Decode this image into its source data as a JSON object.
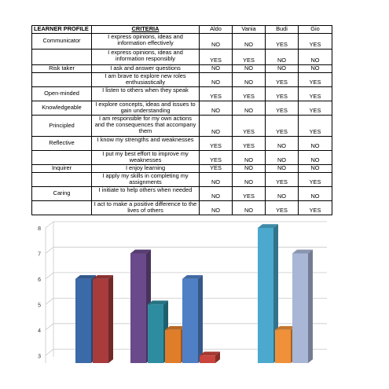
{
  "table": {
    "headers": [
      "LEARNER PROFILE",
      "CRITERIA",
      "Aldo",
      "Vania",
      "Budi",
      "Gio"
    ],
    "rows": [
      {
        "profile": "Communicator",
        "criteria": "I express opinions, ideas and information effectively",
        "values": [
          "NO",
          "NO",
          "YES",
          "YES"
        ]
      },
      {
        "profile": "",
        "criteria": "I express opinions, ideas and information responsibly",
        "values": [
          "YES",
          "YES",
          "NO",
          "NO"
        ]
      },
      {
        "profile": "Risk taker",
        "criteria": "I ask and answer questions",
        "values": [
          "NO",
          "NO",
          "NO",
          "NO"
        ]
      },
      {
        "profile": "",
        "criteria": "I am brave to explore new roles enthusiastically",
        "values": [
          "NO",
          "NO",
          "YES",
          "YES"
        ]
      },
      {
        "profile": "Open-minded",
        "criteria": "I listen to others when they speak",
        "values": [
          "YES",
          "YES",
          "YES",
          "YES"
        ]
      },
      {
        "profile": "Knowledgeable",
        "criteria": "I explore concepts, ideas and issues to gain understanding",
        "values": [
          "NO",
          "NO",
          "YES",
          "YES"
        ]
      },
      {
        "profile": "Principled",
        "criteria": "I am responsible for my own actions and the consequences that accompany them",
        "values": [
          "NO",
          "YES",
          "YES",
          "YES"
        ]
      },
      {
        "profile": "Reflective",
        "criteria": "I know my strengths and weaknesses",
        "values": [
          "YES",
          "YES",
          "NO",
          "NO"
        ]
      },
      {
        "profile": "",
        "criteria": "I put my best effort to improve my weaknesses",
        "values": [
          "YES",
          "NO",
          "NO",
          "NO"
        ]
      },
      {
        "profile": "Inquirer",
        "criteria": "I enjoy learning",
        "values": [
          "YES",
          "NO",
          "NO",
          "NO"
        ]
      },
      {
        "profile": "",
        "criteria": "I apply my skills in completing my assignments",
        "values": [
          "NO",
          "NO",
          "YES",
          "YES"
        ]
      },
      {
        "profile": "Caring",
        "criteria": "I initiate to help others when needed",
        "values": [
          "NO",
          "YES",
          "NO",
          "NO"
        ]
      },
      {
        "profile": "",
        "criteria": "I act to make a positive difference to the lives of others",
        "values": [
          "NO",
          "NO",
          "YES",
          "YES"
        ]
      }
    ]
  },
  "chart_data": {
    "type": "bar",
    "style": "3d-clustered-column",
    "y_ticks": [
      "3",
      "4",
      "5",
      "6",
      "7",
      "8"
    ],
    "ylim": [
      2.7,
      8
    ],
    "grid": true,
    "legend": "none",
    "groups": [
      {
        "bars": [
          {
            "value": 6,
            "color": "#3a6aa8"
          },
          {
            "value": 6,
            "color": "#a83c3c"
          }
        ]
      },
      {
        "bars": [
          {
            "value": 7,
            "color": "#6a4a8a"
          },
          {
            "value": 5,
            "color": "#2e8ca0"
          },
          {
            "value": 4,
            "color": "#e07d2a"
          },
          {
            "value": 6,
            "color": "#4f80c6"
          },
          {
            "value": 3,
            "color": "#c8443c"
          }
        ]
      },
      {
        "bars": [
          {
            "value": 8,
            "color": "#4aa9cc"
          },
          {
            "value": 4,
            "color": "#f09038"
          },
          {
            "value": 7,
            "color": "#a9b6d6"
          }
        ]
      }
    ]
  }
}
